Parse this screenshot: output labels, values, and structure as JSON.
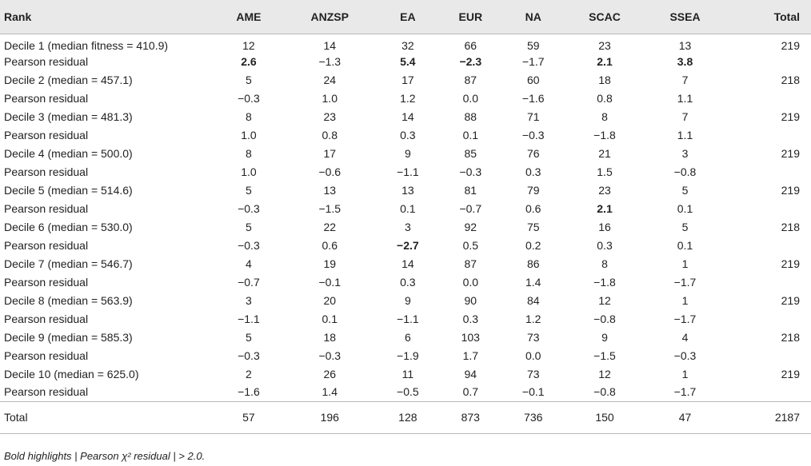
{
  "table": {
    "headers": [
      "Rank",
      "AME",
      "ANZSP",
      "EA",
      "EUR",
      "NA",
      "SCAC",
      "SSEA",
      "Total"
    ],
    "rows": [
      {
        "label": "Decile 1 (median fitness = 410.9)",
        "values": [
          "12",
          "14",
          "32",
          "66",
          "59",
          "23",
          "13"
        ],
        "total": "219",
        "bold": [
          false,
          false,
          false,
          false,
          false,
          false,
          false
        ]
      },
      {
        "label": "Pearson residual",
        "values": [
          "2.6",
          "−1.3",
          "5.4",
          "−2.3",
          "−1.7",
          "2.1",
          "3.8"
        ],
        "total": "",
        "bold": [
          true,
          false,
          true,
          true,
          false,
          true,
          true
        ]
      },
      {
        "label": "Decile 2 (median = 457.1)",
        "values": [
          "5",
          "24",
          "17",
          "87",
          "60",
          "18",
          "7"
        ],
        "total": "218",
        "bold": [
          false,
          false,
          false,
          false,
          false,
          false,
          false
        ]
      },
      {
        "label": "Pearson residual",
        "values": [
          "−0.3",
          "1.0",
          "1.2",
          "0.0",
          "−1.6",
          "0.8",
          "1.1"
        ],
        "total": "",
        "bold": [
          false,
          false,
          false,
          false,
          false,
          false,
          false
        ]
      },
      {
        "label": "Decile 3 (median = 481.3)",
        "values": [
          "8",
          "23",
          "14",
          "88",
          "71",
          "8",
          "7"
        ],
        "total": "219",
        "bold": [
          false,
          false,
          false,
          false,
          false,
          false,
          false
        ]
      },
      {
        "label": "Pearson residual",
        "values": [
          "1.0",
          "0.8",
          "0.3",
          "0.1",
          "−0.3",
          "−1.8",
          "1.1"
        ],
        "total": "",
        "bold": [
          false,
          false,
          false,
          false,
          false,
          false,
          false
        ]
      },
      {
        "label": "Decile 4 (median = 500.0)",
        "values": [
          "8",
          "17",
          "9",
          "85",
          "76",
          "21",
          "3"
        ],
        "total": "219",
        "bold": [
          false,
          false,
          false,
          false,
          false,
          false,
          false
        ]
      },
      {
        "label": "Pearson residual",
        "values": [
          "1.0",
          "−0.6",
          "−1.1",
          "−0.3",
          "0.3",
          "1.5",
          "−0.8"
        ],
        "total": "",
        "bold": [
          false,
          false,
          false,
          false,
          false,
          false,
          false
        ]
      },
      {
        "label": "Decile 5 (median = 514.6)",
        "values": [
          "5",
          "13",
          "13",
          "81",
          "79",
          "23",
          "5"
        ],
        "total": "219",
        "bold": [
          false,
          false,
          false,
          false,
          false,
          false,
          false
        ]
      },
      {
        "label": "Pearson residual",
        "values": [
          "−0.3",
          "−1.5",
          "0.1",
          "−0.7",
          "0.6",
          "2.1",
          "0.1"
        ],
        "total": "",
        "bold": [
          false,
          false,
          false,
          false,
          false,
          true,
          false
        ]
      },
      {
        "label": "Decile 6 (median = 530.0)",
        "values": [
          "5",
          "22",
          "3",
          "92",
          "75",
          "16",
          "5"
        ],
        "total": "218",
        "bold": [
          false,
          false,
          false,
          false,
          false,
          false,
          false
        ]
      },
      {
        "label": "Pearson residual",
        "values": [
          "−0.3",
          "0.6",
          "−2.7",
          "0.5",
          "0.2",
          "0.3",
          "0.1"
        ],
        "total": "",
        "bold": [
          false,
          false,
          true,
          false,
          false,
          false,
          false
        ]
      },
      {
        "label": "Decile 7 (median = 546.7)",
        "values": [
          "4",
          "19",
          "14",
          "87",
          "86",
          "8",
          "1"
        ],
        "total": "219",
        "bold": [
          false,
          false,
          false,
          false,
          false,
          false,
          false
        ]
      },
      {
        "label": "Pearson residual",
        "values": [
          "−0.7",
          "−0.1",
          "0.3",
          "0.0",
          "1.4",
          "−1.8",
          "−1.7"
        ],
        "total": "",
        "bold": [
          false,
          false,
          false,
          false,
          false,
          false,
          false
        ]
      },
      {
        "label": "Decile 8 (median = 563.9)",
        "values": [
          "3",
          "20",
          "9",
          "90",
          "84",
          "12",
          "1"
        ],
        "total": "219",
        "bold": [
          false,
          false,
          false,
          false,
          false,
          false,
          false
        ]
      },
      {
        "label": "Pearson residual",
        "values": [
          "−1.1",
          "0.1",
          "−1.1",
          "0.3",
          "1.2",
          "−0.8",
          "−1.7"
        ],
        "total": "",
        "bold": [
          false,
          false,
          false,
          false,
          false,
          false,
          false
        ]
      },
      {
        "label": "Decile 9 (median = 585.3)",
        "values": [
          "5",
          "18",
          "6",
          "103",
          "73",
          "9",
          "4"
        ],
        "total": "218",
        "bold": [
          false,
          false,
          false,
          false,
          false,
          false,
          false
        ]
      },
      {
        "label": "Pearson residual",
        "values": [
          "−0.3",
          "−0.3",
          "−1.9",
          "1.7",
          "0.0",
          "−1.5",
          "−0.3"
        ],
        "total": "",
        "bold": [
          false,
          false,
          false,
          false,
          false,
          false,
          false
        ]
      },
      {
        "label": "Decile 10 (median = 625.0)",
        "values": [
          "2",
          "26",
          "11",
          "94",
          "73",
          "12",
          "1"
        ],
        "total": "219",
        "bold": [
          false,
          false,
          false,
          false,
          false,
          false,
          false
        ]
      },
      {
        "label": "Pearson residual",
        "values": [
          "−1.6",
          "1.4",
          "−0.5",
          "0.7",
          "−0.1",
          "−0.8",
          "−1.7"
        ],
        "total": "",
        "bold": [
          false,
          false,
          false,
          false,
          false,
          false,
          false
        ]
      }
    ],
    "total_row": {
      "label": "Total",
      "values": [
        "57",
        "196",
        "128",
        "873",
        "736",
        "150",
        "47"
      ],
      "total": "2187"
    }
  },
  "footnote": "Bold highlights | Pearson χ² residual | > 2.0."
}
